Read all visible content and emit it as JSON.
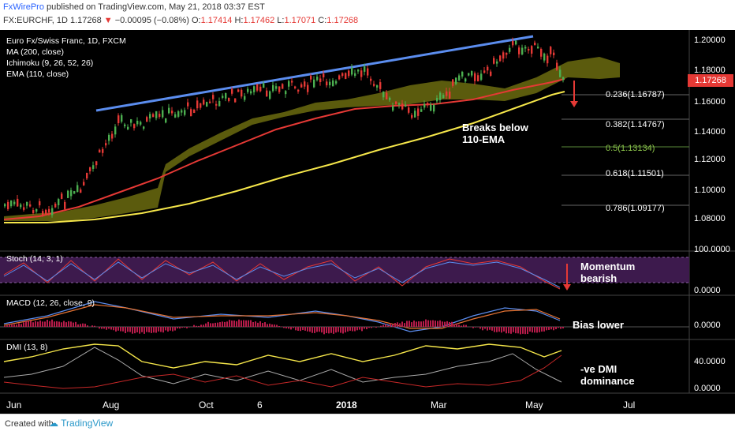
{
  "header": {
    "brand": "FxWirePro",
    "published": "published on TradingView.com, May 21, 2018 03:37 EST",
    "symbol": "FX:EURCHF, 1D",
    "last": "1.17268",
    "change": "−0.00095 (−0.08%)",
    "open_label": "O:",
    "open": "1.17414",
    "high_label": "H:",
    "high": "1.17462",
    "low_label": "L:",
    "low": "1.17071",
    "close_label": "C:",
    "close": "1.17268"
  },
  "legend": {
    "title": "Euro Fx/Swiss Franc, 1D, FXCM",
    "ma": "MA (200, close)",
    "ichimoku": "Ichimoku (9, 26, 52, 26)",
    "ema": "EMA (110, close)"
  },
  "price_axis": [
    "1.20000",
    "1.18000",
    "1.16000",
    "1.14000",
    "1.12000",
    "1.10000",
    "1.08000"
  ],
  "current_price": "1.17268",
  "fib_levels": [
    {
      "ratio": "0.236",
      "value": "1.16787",
      "label": "0.236(1.16787)"
    },
    {
      "ratio": "0.382",
      "value": "1.14767",
      "label": "0.382(1.14767)"
    },
    {
      "ratio": "0.5",
      "value": "1.13134",
      "label": "0.5(1.13134)"
    },
    {
      "ratio": "0.618",
      "value": "1.11501",
      "label": "0.618(1.11501)"
    },
    {
      "ratio": "0.786",
      "value": "1.09177",
      "label": "0.786(1.09177)"
    }
  ],
  "annotations": {
    "ema_break": "Breaks below\n110-EMA",
    "momentum": "Momentum\nbearish",
    "bias": "Bias lower",
    "dmi": "-ve DMI\ndominance"
  },
  "panes": {
    "stoch": {
      "label": "Stoch (14, 3, 1)",
      "axis": [
        "100.0000",
        "0.0000"
      ]
    },
    "macd": {
      "label": "MACD (12, 26, close, 9)",
      "axis": [
        "0.0000"
      ]
    },
    "dmi": {
      "label": "DMI (13, 8)",
      "axis": [
        "40.0000",
        "0.0000"
      ]
    }
  },
  "x_axis": [
    {
      "label": "Jun",
      "bold": false
    },
    {
      "label": "Aug",
      "bold": false
    },
    {
      "label": "Oct",
      "bold": false
    },
    {
      "label": "6",
      "bold": false
    },
    {
      "label": "2018",
      "bold": true
    },
    {
      "label": "Mar",
      "bold": false
    },
    {
      "label": "May",
      "bold": false
    },
    {
      "label": "Jul",
      "bold": false
    }
  ],
  "footer": {
    "created": "Created with",
    "tradingview": "TradingView"
  },
  "colors": {
    "background": "#000000",
    "trendline": "#5b8def",
    "ema": "#e53935",
    "ma": "#f5e64a",
    "cloud": "#8a8a1a",
    "stoch_bg": "#3d1a4d",
    "down": "#e53935",
    "up": "#4caf50"
  },
  "chart_data": {
    "type": "candlestick",
    "title": "Euro Fx/Swiss Franc, 1D, FXCM",
    "ylim": [
      1.07,
      1.205
    ],
    "price_axis_ticks": [
      1.08,
      1.1,
      1.12,
      1.14,
      1.16,
      1.18,
      1.2
    ],
    "series": [
      {
        "name": "MA (200, close)",
        "approx_values": [
          1.075,
          1.076,
          1.08,
          1.09,
          1.102,
          1.115,
          1.128,
          1.14,
          1.15,
          1.158,
          1.165
        ]
      },
      {
        "name": "EMA (110, close)",
        "approx_values": [
          1.075,
          1.08,
          1.1,
          1.12,
          1.132,
          1.143,
          1.15,
          1.155,
          1.16,
          1.168,
          1.175
        ]
      }
    ],
    "trendline": {
      "from": 1.153,
      "to": 1.202
    }
  }
}
